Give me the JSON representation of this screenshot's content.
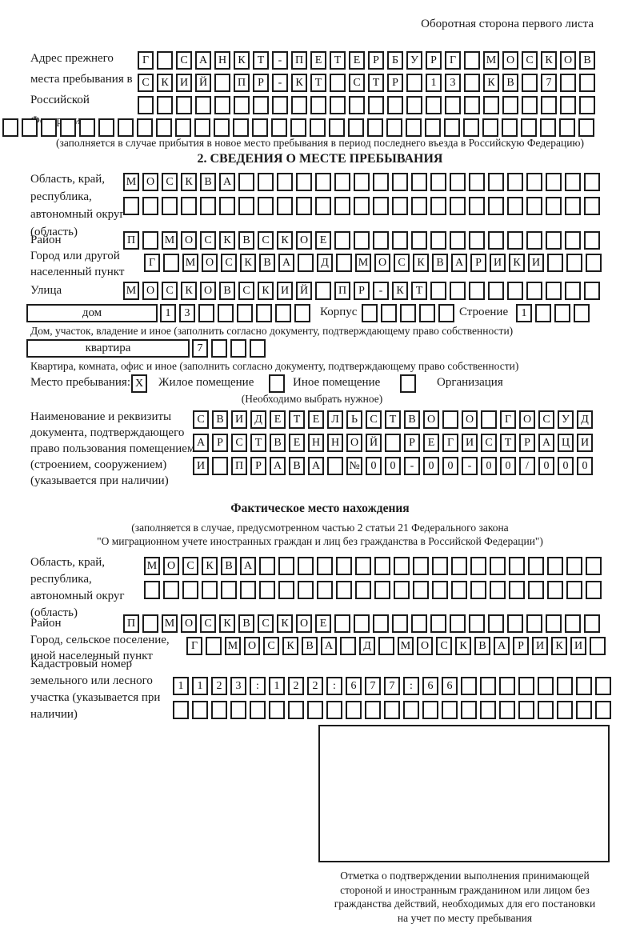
{
  "header_note": "Оборотная сторона первого листа",
  "prev_address": {
    "label": "Адрес прежнего места пребывания в Российской Федерации",
    "row1": [
      "Г",
      "",
      "С",
      "А",
      "Н",
      "К",
      "Т",
      "-",
      "П",
      "Е",
      "Т",
      "Е",
      "Р",
      "Б",
      "У",
      "Р",
      "Г",
      "",
      "М",
      "О",
      "С",
      "К",
      "О",
      "В"
    ],
    "row2": [
      "С",
      "К",
      "И",
      "Й",
      "",
      "П",
      "Р",
      "-",
      "К",
      "Т",
      "",
      "С",
      "Т",
      "Р",
      "",
      "1",
      "3",
      "",
      "К",
      "В",
      "",
      "7",
      "",
      ""
    ],
    "row3": {
      "empty": 24
    },
    "row4": {
      "empty": 31
    },
    "caption": "(заполняется в случае прибытия в новое место пребывания в период последнего въезда в Российскую Федерацию)"
  },
  "section2": {
    "title": "2. СВЕДЕНИЯ О МЕСТЕ ПРЕБЫВАНИЯ",
    "oblast": {
      "label": "Область, край, республика, автономный округ (область)",
      "row1": [
        "М",
        "О",
        "С",
        "К",
        "В",
        "А",
        "",
        "",
        "",
        "",
        "",
        "",
        "",
        "",
        "",
        "",
        "",
        "",
        "",
        "",
        "",
        "",
        "",
        "",
        ""
      ],
      "row2": {
        "empty": 25
      }
    },
    "rayon": {
      "label": "Район",
      "row": [
        "П",
        "",
        "М",
        "О",
        "С",
        "К",
        "В",
        "С",
        "К",
        "О",
        "Е",
        "",
        "",
        "",
        "",
        "",
        "",
        "",
        "",
        "",
        "",
        "",
        "",
        "",
        ""
      ]
    },
    "gorod": {
      "label": "Город или другой населенный пункт",
      "row": [
        "Г",
        "",
        "М",
        "О",
        "С",
        "К",
        "В",
        "А",
        "",
        "Д",
        "",
        "М",
        "О",
        "С",
        "К",
        "В",
        "А",
        "Р",
        "И",
        "К",
        "И",
        "",
        "",
        ""
      ]
    },
    "ulitsa": {
      "label": "Улица",
      "row": [
        "М",
        "О",
        "С",
        "К",
        "О",
        "В",
        "С",
        "К",
        "И",
        "Й",
        "",
        "П",
        "Р",
        "-",
        "К",
        "Т",
        "",
        "",
        "",
        "",
        "",
        "",
        "",
        "",
        ""
      ]
    },
    "dom": {
      "box_label": "дом",
      "cells": [
        "1",
        "3",
        "",
        "",
        "",
        "",
        "",
        ""
      ],
      "korpus_label": "Корпус",
      "korpus_cells": {
        "empty": 5
      },
      "stroenie_label": "Строение",
      "stroenie_cells": [
        "1",
        "",
        "",
        ""
      ],
      "caption": "Дом, участок, владение и иное (заполнить согласно документу, подтверждающему право собственности)"
    },
    "kvartira": {
      "box_label": "квартира",
      "cells": [
        "7",
        "",
        "",
        ""
      ],
      "caption": "Квартира, комната, офис и иное (заполнить согласно документу, подтверждающему право собственности)"
    },
    "mesto": {
      "label": "Место пребывания:",
      "options": [
        {
          "mark": "X",
          "label": "Жилое помещение"
        },
        {
          "mark": "",
          "label": "Иное помещение"
        },
        {
          "mark": "",
          "label": "Организация"
        }
      ],
      "caption": "(Необходимо выбрать нужное)"
    },
    "document": {
      "label": "Наименование и реквизиты документа, подтверждающего право пользования помещением (строением, сооружением) (указывается при наличии)",
      "row1": [
        "С",
        "В",
        "И",
        "Д",
        "Е",
        "Т",
        "Е",
        "Л",
        "Ь",
        "С",
        "Т",
        "В",
        "О",
        "",
        "О",
        "",
        "Г",
        "О",
        "С",
        "У",
        "Д"
      ],
      "row2": [
        "А",
        "Р",
        "С",
        "Т",
        "В",
        "Е",
        "Н",
        "Н",
        "О",
        "Й",
        "",
        "Р",
        "Е",
        "Г",
        "И",
        "С",
        "Т",
        "Р",
        "А",
        "Ц",
        "И"
      ],
      "row3": [
        "И",
        "",
        "П",
        "Р",
        "А",
        "В",
        "А",
        "",
        "№",
        "0",
        "0",
        "-",
        "0",
        "0",
        "-",
        "0",
        "0",
        "/",
        "0",
        "0",
        "0"
      ]
    }
  },
  "fakt": {
    "title": "Фактическое место нахождения",
    "caption1": "(заполняется в случае, предусмотренном частью 2 статьи 21 Федерального закона",
    "caption2": "\"О миграционном учете иностранных граждан и лиц без гражданства в Российской Федерации\")",
    "oblast": {
      "label": "Область, край, республика, автономный округ (область)",
      "row1": [
        "М",
        "О",
        "С",
        "К",
        "В",
        "А",
        "",
        "",
        "",
        "",
        "",
        "",
        "",
        "",
        "",
        "",
        "",
        "",
        "",
        "",
        "",
        "",
        "",
        ""
      ],
      "row2": {
        "empty": 24
      }
    },
    "rayon": {
      "label": "Район",
      "row": [
        "П",
        "",
        "М",
        "О",
        "С",
        "К",
        "В",
        "С",
        "К",
        "О",
        "Е",
        "",
        "",
        "",
        "",
        "",
        "",
        "",
        "",
        "",
        "",
        "",
        "",
        "",
        ""
      ]
    },
    "gorod": {
      "label": "Город, сельское поселение, иной населенный пункт",
      "row": [
        "Г",
        "",
        "М",
        "О",
        "С",
        "К",
        "В",
        "А",
        "",
        "Д",
        "",
        "М",
        "О",
        "С",
        "К",
        "В",
        "А",
        "Р",
        "И",
        "К",
        "И",
        ""
      ]
    },
    "kadastr": {
      "label": "Кадастровый номер земельного или лесного участка (указывается при наличии)",
      "row1": [
        "1",
        "1",
        "2",
        "3",
        ":",
        "1",
        "2",
        "2",
        ":",
        "6",
        "7",
        "7",
        ":",
        "6",
        "6",
        "",
        "",
        "",
        "",
        "",
        "",
        "",
        ""
      ],
      "row2": {
        "empty": 23
      }
    }
  },
  "stamp": {
    "caption_lines": [
      "Отметка о подтверждении выполнения принимающей",
      "стороной и иностранным гражданином или лицом без",
      "гражданства действий, необходимых для его постановки",
      "на учет по месту пребывания"
    ]
  },
  "colors": {
    "ink": "#1a1a1a"
  }
}
